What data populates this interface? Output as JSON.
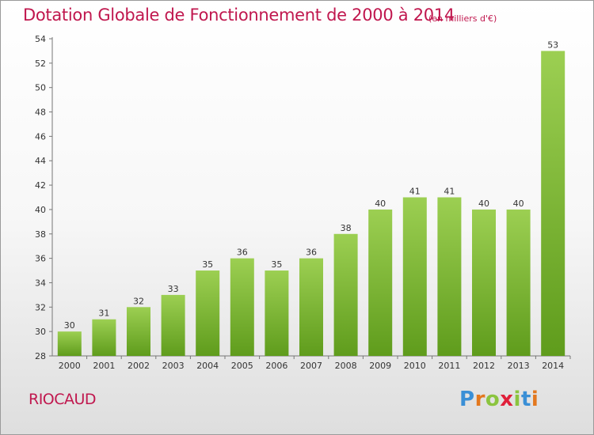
{
  "title": "Dotation Globale de Fonctionnement de 2000 à 2014",
  "subtitle": "(en milliers d'€)",
  "commune": "RIOCAUD",
  "brand": {
    "letters": [
      "P",
      "r",
      "o",
      "x",
      "i",
      "t",
      "i"
    ],
    "colors": [
      "#3a8fd6",
      "#e3781e",
      "#8bc43f",
      "#e0203a",
      "#8bc43f",
      "#3a8fd6",
      "#e3781e"
    ]
  },
  "chart_data": {
    "type": "bar",
    "categories": [
      "2000",
      "2001",
      "2002",
      "2003",
      "2004",
      "2005",
      "2006",
      "2007",
      "2008",
      "2009",
      "2010",
      "2011",
      "2012",
      "2013",
      "2014"
    ],
    "values": [
      30,
      31,
      32,
      33,
      35,
      36,
      35,
      36,
      38,
      40,
      41,
      41,
      40,
      40,
      53
    ],
    "data_labels": [
      "30",
      "31",
      "32",
      "33",
      "35",
      "36",
      "35",
      "36",
      "38",
      "40",
      "41",
      "41",
      "40",
      "40",
      "53"
    ],
    "ylim": [
      28,
      54
    ],
    "yticks": [
      28,
      30,
      32,
      34,
      36,
      38,
      40,
      42,
      44,
      46,
      48,
      50,
      52,
      54
    ],
    "bar_color": "#7fbf2e",
    "grid": false
  }
}
